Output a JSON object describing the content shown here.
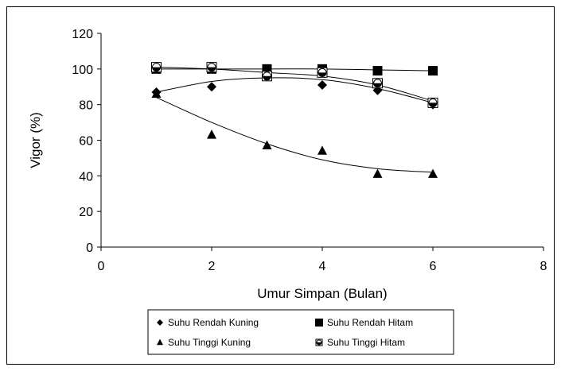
{
  "chart_data": {
    "type": "scatter",
    "title": "",
    "xlabel": "Umur Simpan (Bulan)",
    "ylabel": "Vigor (%)",
    "xlim": [
      0,
      8
    ],
    "ylim": [
      0,
      120
    ],
    "x_ticks": [
      0,
      2,
      4,
      6,
      8
    ],
    "y_ticks": [
      0,
      20,
      40,
      60,
      80,
      100,
      120
    ],
    "grid": false,
    "legend_position": "bottom",
    "series": [
      {
        "name": "Suhu Rendah Kuning",
        "marker": "diamond",
        "color": "#000000",
        "x": [
          1,
          2,
          3,
          4,
          5,
          6
        ],
        "y": [
          87,
          90,
          97,
          91,
          88,
          80
        ],
        "trend": [
          [
            1,
            87
          ],
          [
            2,
            93
          ],
          [
            3,
            95
          ],
          [
            4,
            94
          ],
          [
            5,
            89
          ],
          [
            6,
            81
          ]
        ]
      },
      {
        "name": "Suhu Rendah Hitam",
        "marker": "square",
        "color": "#000000",
        "x": [
          1,
          2,
          3,
          4,
          5,
          6
        ],
        "y": [
          100,
          100,
          100,
          100,
          99,
          99
        ],
        "trend": [
          [
            1,
            100
          ],
          [
            2,
            100
          ],
          [
            3,
            100
          ],
          [
            4,
            100
          ],
          [
            5,
            99.5
          ],
          [
            6,
            99
          ]
        ]
      },
      {
        "name": "Suhu Tinggi Kuning",
        "marker": "triangle",
        "color": "#000000",
        "x": [
          1,
          2,
          3,
          4,
          5,
          6
        ],
        "y": [
          86,
          63,
          57,
          54,
          41,
          41
        ],
        "trend": [
          [
            1,
            84
          ],
          [
            2,
            70
          ],
          [
            3,
            58
          ],
          [
            4,
            49
          ],
          [
            5,
            44
          ],
          [
            6,
            42
          ]
        ]
      },
      {
        "name": "Suhu Tinggi Hitam",
        "marker": "circle-square",
        "color": "#000000",
        "x": [
          1,
          2,
          3,
          4,
          5,
          6
        ],
        "y": [
          101,
          101,
          96,
          98,
          92,
          81
        ],
        "trend": [
          [
            1,
            101
          ],
          [
            2,
            100
          ],
          [
            3,
            98
          ],
          [
            4,
            96
          ],
          [
            5,
            91
          ],
          [
            6,
            82
          ]
        ]
      }
    ]
  }
}
